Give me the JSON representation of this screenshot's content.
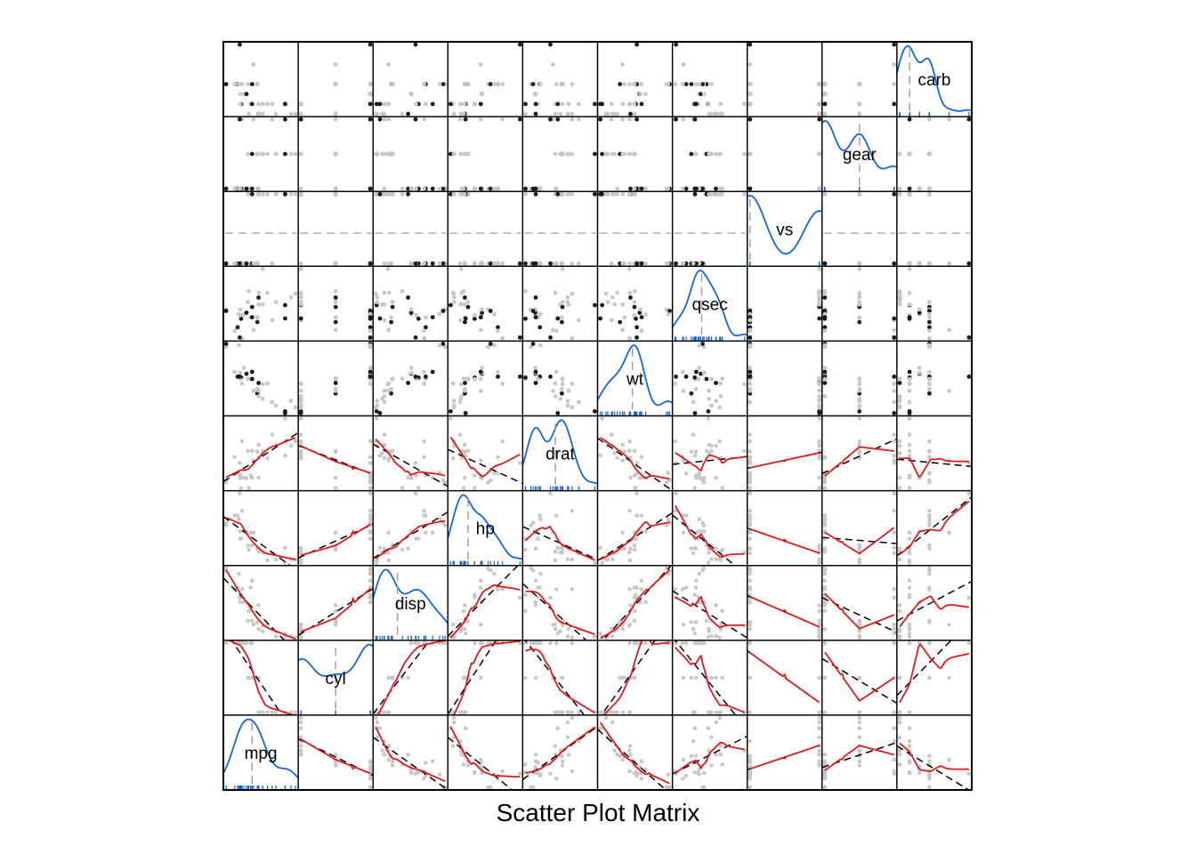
{
  "chart_data": {
    "type": "scatter",
    "title": "Scatter Plot Matrix",
    "variables": [
      "mpg",
      "cyl",
      "disp",
      "hp",
      "drat",
      "wt",
      "qsec",
      "vs",
      "gear",
      "carb"
    ],
    "diagonal": "density",
    "upper_panels": "scatter",
    "lower_panels": "smoothers",
    "colors": {
      "density": "#1565d8",
      "rug": "#1565d8",
      "loess": "#e31a1c",
      "linear_fit": "#000000",
      "points_light": "#c8c8c8",
      "points_dark": "#1a1a1a",
      "median_line": "#a0a0a0",
      "frame": "#000000"
    },
    "data": {
      "mpg": [
        21,
        21,
        22.8,
        21.4,
        18.7,
        18.1,
        14.3,
        24.4,
        22.8,
        19.2,
        17.8,
        16.4,
        17.3,
        15.2,
        10.4,
        10.4,
        14.7,
        32.4,
        30.4,
        33.9,
        21.5,
        15.5,
        15.2,
        13.3,
        19.2,
        27.3,
        26,
        30.4,
        15.8,
        19.7,
        15,
        21.4
      ],
      "cyl": [
        6,
        6,
        4,
        6,
        8,
        6,
        8,
        4,
        4,
        6,
        6,
        8,
        8,
        8,
        8,
        8,
        8,
        4,
        4,
        4,
        4,
        8,
        8,
        8,
        8,
        4,
        4,
        4,
        8,
        6,
        8,
        4
      ],
      "disp": [
        160,
        160,
        108,
        258,
        360,
        225,
        360,
        146.7,
        140.8,
        167.6,
        167.6,
        275.8,
        275.8,
        275.8,
        472,
        460,
        440,
        78.7,
        75.7,
        71.1,
        120.1,
        318,
        304,
        350,
        400,
        79,
        120.3,
        95.1,
        351,
        145,
        301,
        121
      ],
      "hp": [
        110,
        110,
        93,
        110,
        175,
        105,
        245,
        62,
        95,
        123,
        123,
        180,
        180,
        180,
        205,
        215,
        230,
        66,
        52,
        65,
        97,
        150,
        150,
        245,
        175,
        66,
        91,
        113,
        264,
        175,
        335,
        109
      ],
      "drat": [
        3.9,
        3.9,
        3.85,
        3.08,
        3.15,
        2.76,
        3.21,
        3.69,
        3.92,
        3.92,
        3.92,
        3.07,
        3.07,
        3.07,
        2.93,
        3,
        3.23,
        4.08,
        4.93,
        4.22,
        3.7,
        2.76,
        3.15,
        3.73,
        3.08,
        4.08,
        4.43,
        3.77,
        4.22,
        3.62,
        3.54,
        4.11
      ],
      "wt": [
        2.62,
        2.875,
        2.32,
        3.215,
        3.44,
        3.46,
        3.57,
        3.19,
        3.15,
        3.44,
        3.44,
        4.07,
        3.73,
        3.78,
        5.25,
        5.424,
        5.345,
        2.2,
        1.615,
        1.835,
        2.465,
        3.52,
        3.435,
        3.84,
        3.845,
        1.935,
        2.14,
        1.513,
        3.17,
        2.77,
        3.57,
        2.78
      ],
      "qsec": [
        16.46,
        17.02,
        18.61,
        19.44,
        17.02,
        20.22,
        15.84,
        20,
        22.9,
        18.3,
        18.9,
        17.4,
        17.6,
        18,
        17.98,
        17.82,
        17.42,
        19.47,
        18.52,
        19.9,
        20.01,
        16.87,
        17.3,
        15.41,
        17.05,
        18.9,
        16.7,
        16.9,
        14.5,
        15.5,
        14.6,
        18.6
      ],
      "vs": [
        0,
        0,
        1,
        1,
        0,
        1,
        0,
        1,
        1,
        1,
        1,
        0,
        0,
        0,
        0,
        0,
        0,
        1,
        1,
        1,
        1,
        0,
        0,
        0,
        0,
        1,
        0,
        1,
        0,
        0,
        0,
        1
      ],
      "gear": [
        4,
        4,
        4,
        3,
        3,
        3,
        3,
        4,
        4,
        4,
        4,
        3,
        3,
        3,
        3,
        3,
        3,
        4,
        4,
        4,
        3,
        3,
        3,
        3,
        3,
        4,
        5,
        5,
        5,
        5,
        5,
        4
      ],
      "carb": [
        4,
        4,
        1,
        1,
        2,
        1,
        4,
        2,
        2,
        4,
        4,
        3,
        3,
        3,
        4,
        4,
        4,
        1,
        2,
        1,
        1,
        2,
        2,
        4,
        2,
        1,
        2,
        2,
        4,
        6,
        8,
        2
      ]
    }
  }
}
